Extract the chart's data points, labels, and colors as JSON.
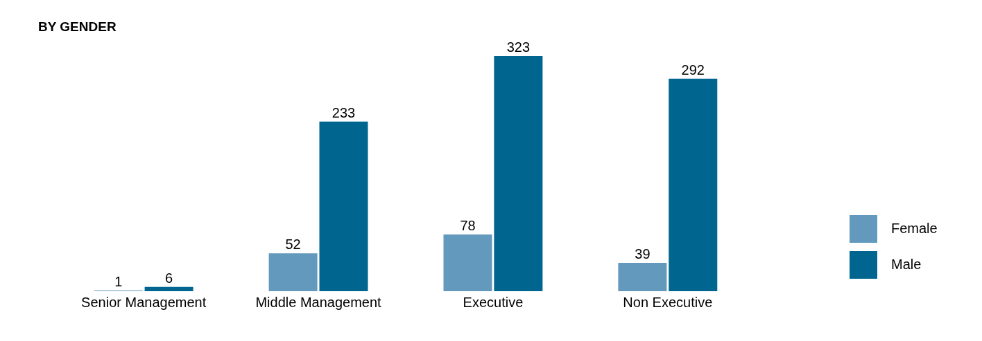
{
  "chart_data": {
    "type": "bar",
    "title": "BY GENDER",
    "categories": [
      "Senior Management",
      "Middle Management",
      "Executive",
      "Non Executive"
    ],
    "series": [
      {
        "name": "Female",
        "color": "#6299bc",
        "values": [
          1,
          52,
          78,
          39
        ]
      },
      {
        "name": "Male",
        "color": "#00668f",
        "values": [
          6,
          233,
          323,
          292
        ]
      }
    ],
    "data_labels": true,
    "legend": "bottom right",
    "grid": false
  }
}
